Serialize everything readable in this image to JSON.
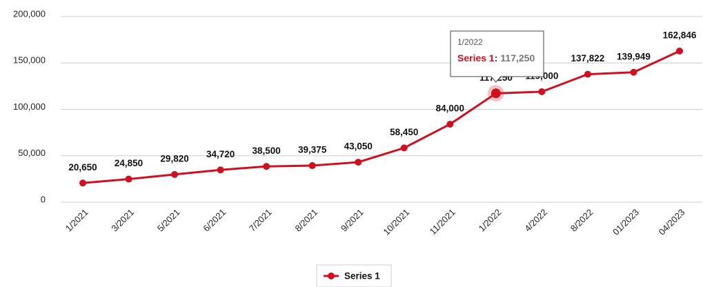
{
  "chart_data": {
    "type": "line",
    "categories": [
      "1/2021",
      "3/2021",
      "5/2021",
      "6/2021",
      "7/2021",
      "8/2021",
      "9/2021",
      "10/2021",
      "11/2021",
      "1/2022",
      "4/2022",
      "8/2022",
      "01/2023",
      "04/2023"
    ],
    "series": [
      {
        "name": "Series 1",
        "color": "#d0101e",
        "values": [
          20650,
          24850,
          29820,
          34720,
          38500,
          39375,
          43050,
          58450,
          84000,
          117250,
          119000,
          137822,
          139949,
          162846
        ],
        "value_labels": [
          "20,650",
          "24,850",
          "29,820",
          "34,720",
          "38,500",
          "39,375",
          "43,050",
          "58,450",
          "84,000",
          "117,250",
          "119,000",
          "137,822",
          "139,949",
          "162,846"
        ]
      }
    ],
    "ylim": [
      0,
      200000
    ],
    "yticks": [
      {
        "value": 0,
        "label": "0"
      },
      {
        "value": 50000,
        "label": "50,000"
      },
      {
        "value": 100000,
        "label": "100,000"
      },
      {
        "value": 150000,
        "label": "150,000"
      },
      {
        "value": 200000,
        "label": "200,000"
      }
    ],
    "grid": true,
    "legend": "bottom",
    "tooltip": {
      "category": "1/2022",
      "series": "Series 1",
      "separator": ":",
      "value": "117,250"
    }
  }
}
